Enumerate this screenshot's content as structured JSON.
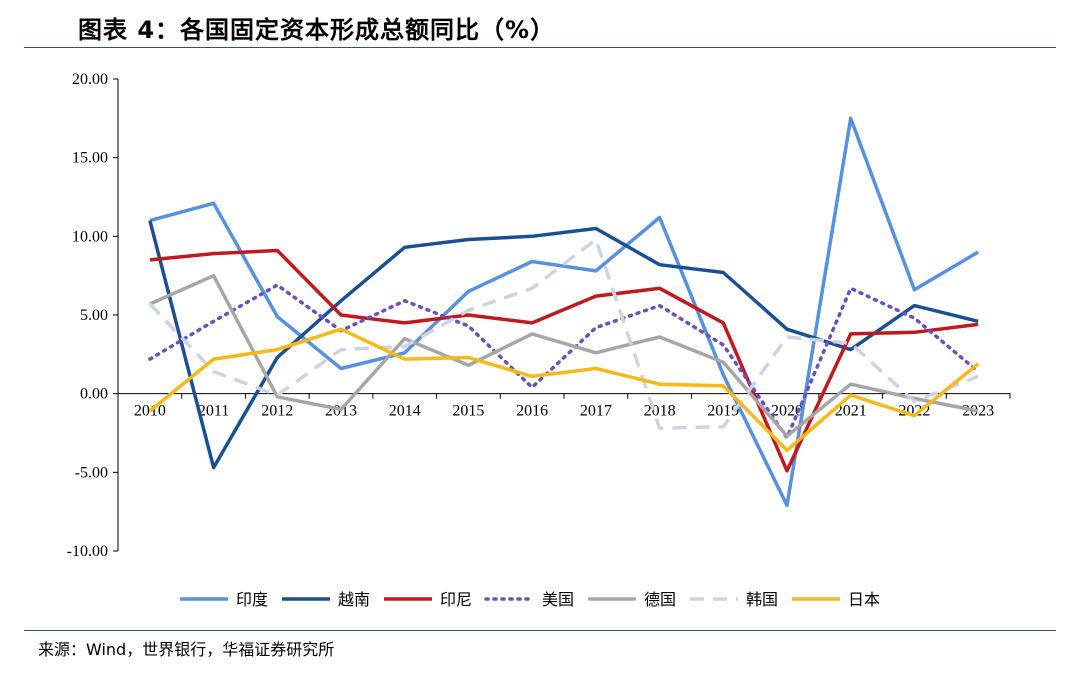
{
  "header": {
    "title": "图表 4：各国固定资本形成总额同比（%）"
  },
  "footer": {
    "source": "来源：Wind，世界银行，华福证券研究所"
  },
  "chart_data": {
    "type": "line",
    "title": "图表 4：各国固定资本形成总额同比（%）",
    "xlabel": "",
    "ylabel": "",
    "ylim": [
      -10,
      20
    ],
    "yticks": [
      "20.00",
      "15.00",
      "10.00",
      "5.00",
      "0.00",
      "-5.00",
      "-10.00"
    ],
    "ytick_values": [
      20,
      15,
      10,
      5,
      0,
      -5,
      -10
    ],
    "categories": [
      "2010",
      "2011",
      "2012",
      "2013",
      "2014",
      "2015",
      "2016",
      "2017",
      "2018",
      "2019",
      "2020",
      "2021",
      "2022",
      "2023"
    ],
    "grid": false,
    "legend_position": "bottom",
    "series": [
      {
        "name": "印度",
        "color": "#5591de",
        "dash": "solid",
        "values": [
          11.0,
          12.1,
          4.9,
          1.6,
          2.6,
          6.5,
          8.4,
          7.8,
          11.2,
          1.2,
          -7.1,
          17.5,
          6.6,
          9.0
        ]
      },
      {
        "name": "越南",
        "color": "#1b4f94",
        "dash": "solid",
        "values": [
          11.0,
          -4.7,
          2.3,
          5.9,
          9.3,
          9.8,
          10.0,
          10.5,
          8.2,
          7.7,
          4.1,
          2.8,
          5.6,
          4.6
        ]
      },
      {
        "name": "印尼",
        "color": "#c0191e",
        "dash": "solid",
        "values": [
          8.5,
          8.9,
          9.1,
          5.0,
          4.5,
          5.0,
          4.5,
          6.2,
          6.7,
          4.5,
          -4.9,
          3.8,
          3.9,
          4.4
        ]
      },
      {
        "name": "美国",
        "color": "#6a4fbf",
        "dash": "dot",
        "values": [
          2.2,
          4.6,
          6.9,
          4.0,
          5.9,
          4.3,
          0.4,
          4.2,
          5.6,
          3.1,
          -2.8,
          6.7,
          4.8,
          1.4
        ]
      },
      {
        "name": "德国",
        "color": "#a6a6a6",
        "dash": "solid",
        "values": [
          5.7,
          7.5,
          -0.2,
          -1.0,
          3.5,
          1.8,
          3.8,
          2.6,
          3.6,
          2.0,
          -2.7,
          0.6,
          -0.3,
          -1.1
        ]
      },
      {
        "name": "韩国",
        "color": "#cdd3e3",
        "dash": "dash",
        "values": [
          5.7,
          1.4,
          -0.1,
          2.8,
          3.0,
          5.3,
          6.7,
          9.8,
          -2.2,
          -2.1,
          3.6,
          3.2,
          -0.5,
          1.1
        ]
      },
      {
        "name": "日本",
        "color": "#f7b918",
        "dash": "solid",
        "values": [
          -1.1,
          2.2,
          2.8,
          4.1,
          2.2,
          2.3,
          1.1,
          1.6,
          0.6,
          0.5,
          -3.6,
          -0.1,
          -1.4,
          1.9
        ]
      }
    ]
  }
}
